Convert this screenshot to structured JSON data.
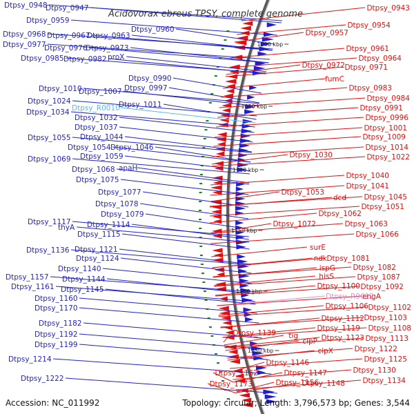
{
  "title": "Acidovorax ebreus TPSY, complete genome",
  "footer": {
    "accession": "Accession: NC_011992",
    "summary": "Topology: circular; Length: 3,796,573 bp; Genes: 3,544"
  },
  "colors": {
    "forward_strand": "#1f1fd0",
    "reverse_strand": "#e01010",
    "rna_forward": "#55bbee",
    "rna_reverse": "#ee88cc",
    "backbone": "#8a8a8a",
    "tick": "#118811"
  },
  "kbp_ticks": [
    "1000 kbp",
    "1050 kbp",
    "1100 kbp",
    "1150 kbp",
    "1200 kbp",
    "1250 kbp"
  ],
  "left_genes": [
    {
      "label": "Dtpsy_0948",
      "type": "cds"
    },
    {
      "label": "Dtpsy_0947",
      "type": "cds"
    },
    {
      "label": "Dtpsy_0959",
      "type": "cds"
    },
    {
      "label": "Dtpsy_0960",
      "type": "cds"
    },
    {
      "label": "Dtpsy_0968",
      "type": "cds"
    },
    {
      "label": "Dtpsy_0967",
      "type": "cds"
    },
    {
      "label": "Dtpsy_0963",
      "type": "cds"
    },
    {
      "label": "Dtpsy_0977",
      "type": "cds"
    },
    {
      "label": "Dtpsy_0976",
      "type": "cds"
    },
    {
      "label": "Dtpsy_0973",
      "type": "cds"
    },
    {
      "label": "Dtpsy_0985",
      "type": "cds"
    },
    {
      "label": "Dtpsy_0982",
      "type": "cds"
    },
    {
      "label": "proX",
      "type": "cds"
    },
    {
      "label": "Dtpsy_0990",
      "type": "cds"
    },
    {
      "label": "Dtpsy_0997",
      "type": "cds"
    },
    {
      "label": "Dtpsy_1010",
      "type": "cds"
    },
    {
      "label": "Dtpsy_1007",
      "type": "cds"
    },
    {
      "label": "Dtpsy_1024",
      "type": "cds"
    },
    {
      "label": "Dtpsy_R0010",
      "type": "rna"
    },
    {
      "label": "Dtpsy_1011",
      "type": "cds"
    },
    {
      "label": "Dtpsy_1034",
      "type": "cds"
    },
    {
      "label": "Dtpsy_1032",
      "type": "cds"
    },
    {
      "label": "Dtpsy_1037",
      "type": "cds"
    },
    {
      "label": "Dtpsy_1055",
      "type": "cds"
    },
    {
      "label": "Dtpsy_1044",
      "type": "cds"
    },
    {
      "label": "Dtpsy_1054",
      "type": "cds"
    },
    {
      "label": "Dtpsy_1046",
      "type": "cds"
    },
    {
      "label": "Dtpsy_1059",
      "type": "cds"
    },
    {
      "label": "Dtpsy_1069",
      "type": "cds"
    },
    {
      "label": "Dtpsy_1068",
      "type": "cds"
    },
    {
      "label": "apaH",
      "type": "cds"
    },
    {
      "label": "Dtpsy_1075",
      "type": "cds"
    },
    {
      "label": "Dtpsy_1077",
      "type": "cds"
    },
    {
      "label": "Dtpsy_1078",
      "type": "cds"
    },
    {
      "label": "Dtpsy_1079",
      "type": "cds"
    },
    {
      "label": "Dtpsy_1117",
      "type": "cds"
    },
    {
      "label": "thyA",
      "type": "cds"
    },
    {
      "label": "Dtpsy_1114",
      "type": "cds"
    },
    {
      "label": "Dtpsy_1115",
      "type": "cds"
    },
    {
      "label": "Dtpsy_1136",
      "type": "cds"
    },
    {
      "label": "Dtpsy_1121",
      "type": "cds"
    },
    {
      "label": "Dtpsy_1124",
      "type": "cds"
    },
    {
      "label": "Dtpsy_1140",
      "type": "cds"
    },
    {
      "label": "Dtpsy_1157",
      "type": "cds"
    },
    {
      "label": "Dtpsy_1144",
      "type": "cds"
    },
    {
      "label": "Dtpsy_1161",
      "type": "cds"
    },
    {
      "label": "Dtpsy_1145",
      "type": "cds"
    },
    {
      "label": "Dtpsy_1160",
      "type": "cds"
    },
    {
      "label": "Dtpsy_1170",
      "type": "cds"
    },
    {
      "label": "Dtpsy_1182",
      "type": "cds"
    },
    {
      "label": "Dtpsy_1192",
      "type": "cds"
    },
    {
      "label": "Dtpsy_1199",
      "type": "cds"
    },
    {
      "label": "Dtpsy_1214",
      "type": "cds"
    },
    {
      "label": "Dtpsy_1222",
      "type": "cds"
    }
  ],
  "right_genes": [
    {
      "label": "Dtpsy_0943",
      "type": "cds"
    },
    {
      "label": "Dtpsy_0954",
      "type": "cds"
    },
    {
      "label": "Dtpsy_0957",
      "type": "cds"
    },
    {
      "label": "Dtpsy_0961",
      "type": "cds"
    },
    {
      "label": "Dtpsy_0964",
      "type": "cds"
    },
    {
      "label": "Dtpsy_0972",
      "type": "cds"
    },
    {
      "label": "Dtpsy_0971",
      "type": "cds"
    },
    {
      "label": "fumC",
      "type": "cds"
    },
    {
      "label": "Dtpsy_0983",
      "type": "cds"
    },
    {
      "label": "Dtpsy_0984",
      "type": "cds"
    },
    {
      "label": "Dtpsy_0991",
      "type": "cds"
    },
    {
      "label": "Dtpsy_0996",
      "type": "cds"
    },
    {
      "label": "Dtpsy_1001",
      "type": "cds"
    },
    {
      "label": "Dtpsy_1009",
      "type": "cds"
    },
    {
      "label": "Dtpsy_1014",
      "type": "cds"
    },
    {
      "label": "Dtpsy_1030",
      "type": "cds"
    },
    {
      "label": "Dtpsy_1022",
      "type": "cds"
    },
    {
      "label": "Dtpsy_1040",
      "type": "cds"
    },
    {
      "label": "Dtpsy_1041",
      "type": "cds"
    },
    {
      "label": "Dtpsy_1053",
      "type": "cds"
    },
    {
      "label": "dcd",
      "type": "cds"
    },
    {
      "label": "Dtpsy_1045",
      "type": "cds"
    },
    {
      "label": "Dtpsy_1051",
      "type": "cds"
    },
    {
      "label": "Dtpsy_1062",
      "type": "cds"
    },
    {
      "label": "Dtpsy_1072",
      "type": "cds"
    },
    {
      "label": "Dtpsy_1063",
      "type": "cds"
    },
    {
      "label": "Dtpsy_1066",
      "type": "cds"
    },
    {
      "label": "surE",
      "type": "cds"
    },
    {
      "label": "ndk",
      "type": "cds"
    },
    {
      "label": "Dtpsy_1081",
      "type": "cds"
    },
    {
      "label": "ispG",
      "type": "cds"
    },
    {
      "label": "Dtpsy_1082",
      "type": "cds"
    },
    {
      "label": "hisS",
      "type": "cds"
    },
    {
      "label": "Dtpsy_1087",
      "type": "cds"
    },
    {
      "label": "Dtpsy_1100",
      "type": "cds"
    },
    {
      "label": "Dtpsy_1092",
      "type": "cds"
    },
    {
      "label": "Dtpsy_R0012",
      "type": "rna"
    },
    {
      "label": "engA",
      "type": "cds"
    },
    {
      "label": "Dtpsy_1106",
      "type": "cds"
    },
    {
      "label": "Dtpsy_1102",
      "type": "cds"
    },
    {
      "label": "Dtpsy_1112",
      "type": "cds"
    },
    {
      "label": "Dtpsy_1103",
      "type": "cds"
    },
    {
      "label": "Dtpsy_1119",
      "type": "cds"
    },
    {
      "label": "Dtpsy_1108",
      "type": "cds"
    },
    {
      "label": "Dtpsy_1139",
      "type": "cds"
    },
    {
      "label": "tig",
      "type": "cds"
    },
    {
      "label": "Dtpsy_1123",
      "type": "cds"
    },
    {
      "label": "Dtpsy_1113",
      "type": "cds"
    },
    {
      "label": "clpP",
      "type": "cds"
    },
    {
      "label": "clpX",
      "type": "cds"
    },
    {
      "label": "Dtpsy_1122",
      "type": "cds"
    },
    {
      "label": "Dtpsy_1125",
      "type": "cds"
    },
    {
      "label": "Dtpsy_1146",
      "type": "cds"
    },
    {
      "label": "Dtpsy_1147",
      "type": "cds"
    },
    {
      "label": "Dtpsy_1130",
      "type": "cds"
    },
    {
      "label": "Dtpsy_1162",
      "type": "cds"
    },
    {
      "label": "Dtpsy_1173",
      "type": "cds"
    },
    {
      "label": "Dtpsy_1156",
      "type": "cds"
    },
    {
      "label": "Dtpsy_1148",
      "type": "cds"
    },
    {
      "label": "Dtpsy_1134",
      "type": "cds"
    }
  ]
}
